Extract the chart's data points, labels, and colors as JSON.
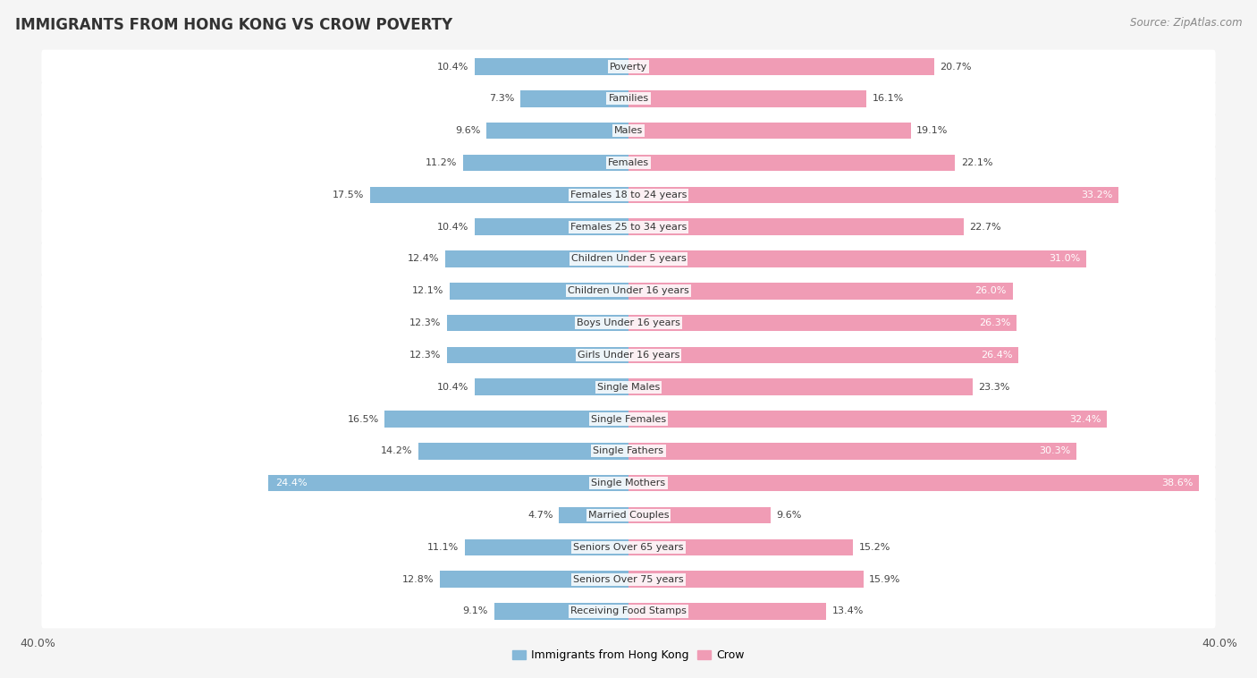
{
  "title": "IMMIGRANTS FROM HONG KONG VS CROW POVERTY",
  "source": "Source: ZipAtlas.com",
  "categories": [
    "Poverty",
    "Families",
    "Males",
    "Females",
    "Females 18 to 24 years",
    "Females 25 to 34 years",
    "Children Under 5 years",
    "Children Under 16 years",
    "Boys Under 16 years",
    "Girls Under 16 years",
    "Single Males",
    "Single Females",
    "Single Fathers",
    "Single Mothers",
    "Married Couples",
    "Seniors Over 65 years",
    "Seniors Over 75 years",
    "Receiving Food Stamps"
  ],
  "hong_kong_values": [
    10.4,
    7.3,
    9.6,
    11.2,
    17.5,
    10.4,
    12.4,
    12.1,
    12.3,
    12.3,
    10.4,
    16.5,
    14.2,
    24.4,
    4.7,
    11.1,
    12.8,
    9.1
  ],
  "crow_values": [
    20.7,
    16.1,
    19.1,
    22.1,
    33.2,
    22.7,
    31.0,
    26.0,
    26.3,
    26.4,
    23.3,
    32.4,
    30.3,
    38.6,
    9.6,
    15.2,
    15.9,
    13.4
  ],
  "hong_kong_color": "#85b8d8",
  "crow_color": "#f09cb5",
  "background_color": "#f5f5f5",
  "row_color": "#ffffff",
  "bar_height": 0.52,
  "legend_label_hk": "Immigrants from Hong Kong",
  "legend_label_crow": "Crow",
  "title_fontsize": 12,
  "source_fontsize": 8.5,
  "label_fontsize": 8,
  "category_fontsize": 8,
  "xlim_max": 40.0,
  "inside_label_threshold_crow": 25.0,
  "inside_label_threshold_hk": 22.0
}
